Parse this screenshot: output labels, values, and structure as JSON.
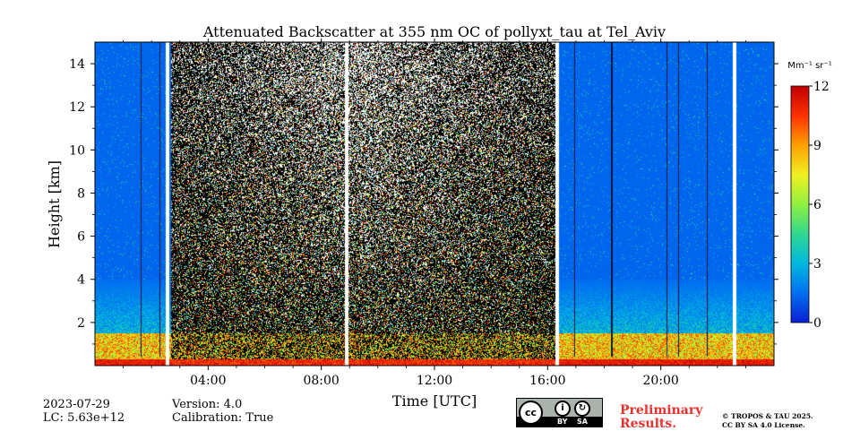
{
  "chart_data": {
    "type": "heatmap",
    "title": "Attenuated Backscatter at 355 nm OC of pollyxt_tau at Tel_Aviv",
    "xlabel": "Time [UTC]",
    "ylabel": "Height [km]",
    "xlim_hours": [
      0,
      24
    ],
    "ylim_km": [
      0,
      15
    ],
    "x_ticks": [
      {
        "hour": 4,
        "label": "04:00"
      },
      {
        "hour": 8,
        "label": "08:00"
      },
      {
        "hour": 12,
        "label": "12:00"
      },
      {
        "hour": 16,
        "label": "16:00"
      },
      {
        "hour": 20,
        "label": "20:00"
      }
    ],
    "y_ticks": [
      {
        "value": 2,
        "label": "2"
      },
      {
        "value": 4,
        "label": "4"
      },
      {
        "value": 6,
        "label": "6"
      },
      {
        "value": 8,
        "label": "8"
      },
      {
        "value": 10,
        "label": "10"
      },
      {
        "value": 12,
        "label": "12"
      },
      {
        "value": 14,
        "label": "14"
      }
    ],
    "colorbar": {
      "unit_label": "Mm⁻¹ sr⁻¹",
      "range": [
        0,
        12
      ],
      "ticks": [
        {
          "value": 0,
          "label": "0"
        },
        {
          "value": 3,
          "label": "3"
        },
        {
          "value": 6,
          "label": "6"
        },
        {
          "value": 9,
          "label": "9"
        },
        {
          "value": 12,
          "label": "12"
        }
      ],
      "colormap": [
        "#0a1fd4",
        "#0070f0",
        "#00b8e0",
        "#30d890",
        "#90f040",
        "#f0f020",
        "#ffa000",
        "#ff3000",
        "#c00000"
      ]
    },
    "gaps_hours": [
      2.55,
      8.9,
      16.35,
      22.6
    ],
    "night_dark_period_hours": [
      2.7,
      16.3
    ],
    "boundary_layer_top_km": 1.5,
    "grid": false
  },
  "footer": {
    "date": "2023-07-29",
    "lc": "LC: 5.63e+12",
    "version": "Version: 4.0",
    "calibration": "Calibration: True",
    "preliminary_line1": "Preliminary",
    "preliminary_line2": "Results.",
    "license_line1": "© TROPOS & TAU 2025.",
    "license_line2": "CC BY SA 4.0 License.",
    "badge": {
      "cc": "cc",
      "by": "BY",
      "sa": "SA"
    }
  }
}
